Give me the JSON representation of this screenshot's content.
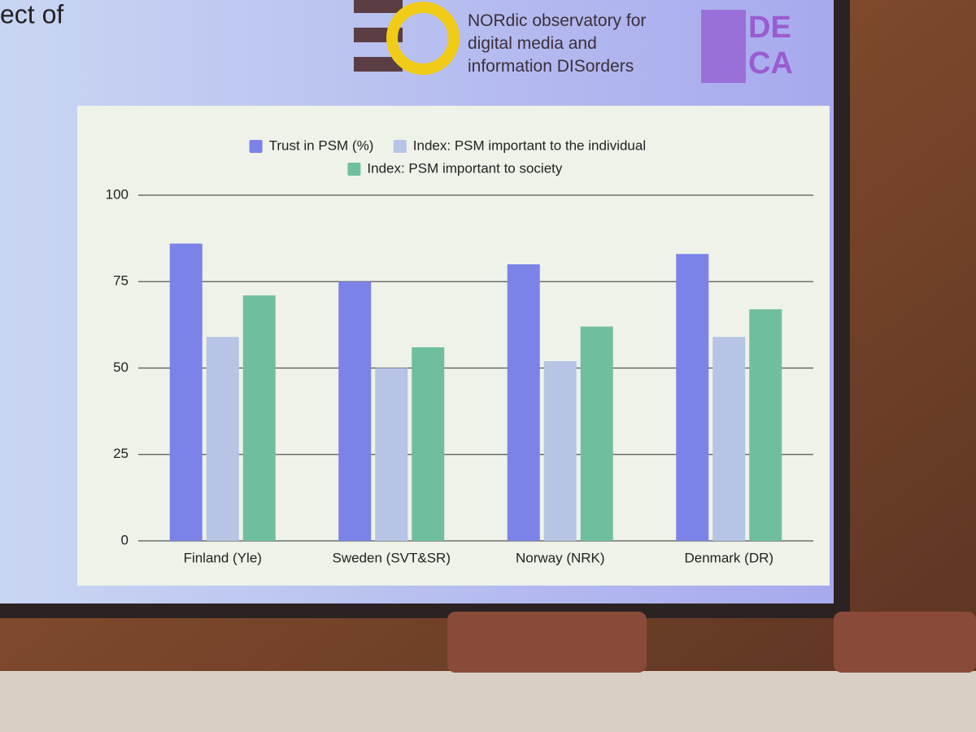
{
  "slide": {
    "title_fragment": "ect of",
    "logo_text": "NORdic observatory for digital media and information DISorders",
    "logo_mark": "DE CA"
  },
  "chart_data": {
    "type": "bar",
    "categories": [
      "Finland (Yle)",
      "Sweden (SVT&SR)",
      "Norway (NRK)",
      "Denmark (DR)"
    ],
    "series": [
      {
        "name": "Trust in PSM (%)",
        "color": "#7b83e8",
        "values": [
          86,
          75,
          80,
          83
        ]
      },
      {
        "name": "Index: PSM important to the individual",
        "color": "#b7c4e6",
        "values": [
          59,
          50,
          52,
          59
        ]
      },
      {
        "name": "Index: PSM important to society",
        "color": "#6fbf9f",
        "values": [
          71,
          56,
          62,
          67
        ]
      }
    ],
    "ylim": [
      0,
      100
    ],
    "yticks": [
      0,
      25,
      50,
      75,
      100
    ],
    "grid": true
  }
}
